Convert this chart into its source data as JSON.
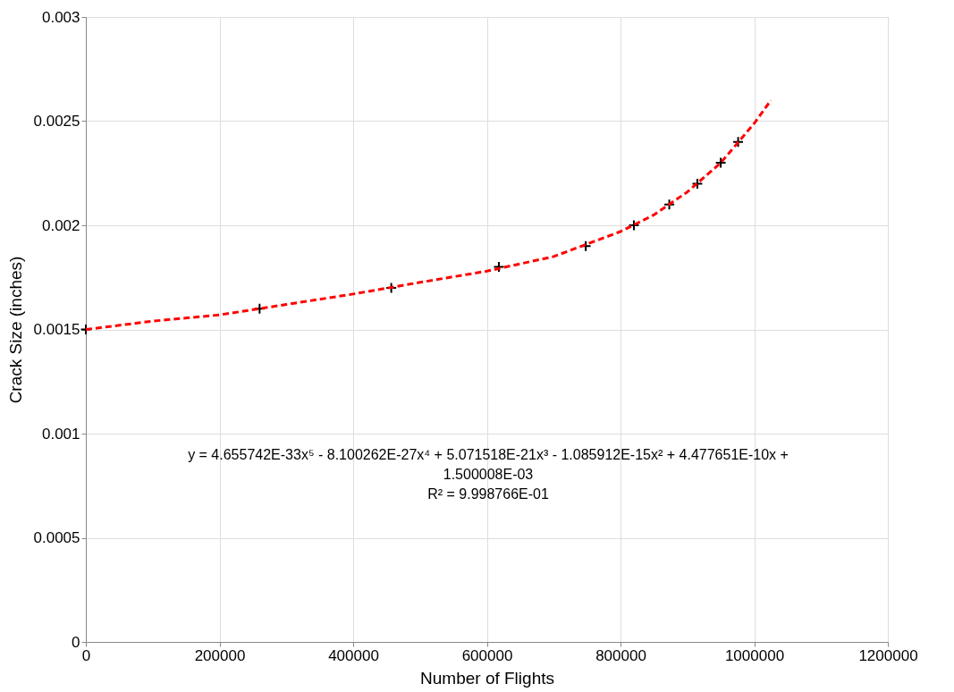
{
  "chart_data": {
    "type": "scatter",
    "xlabel": "Number of Flights",
    "ylabel": "Crack Size (inches)",
    "xlim": [
      0,
      1200000
    ],
    "xticks": [
      0,
      200000,
      400000,
      600000,
      800000,
      1000000,
      1200000
    ],
    "ylim": [
      0,
      0.003
    ],
    "yticks": [
      0,
      0.0005,
      0.001,
      0.0015,
      0.002,
      0.0025,
      0.003
    ],
    "grid": true,
    "series": [
      {
        "color": "#000000",
        "marker": "cross",
        "x": [
          0,
          260000,
          457000,
          618000,
          748000,
          820000,
          873000,
          915000,
          950000,
          976000
        ],
        "values": [
          0.0015,
          0.0016,
          0.0017,
          0.0018,
          0.0019,
          0.002,
          0.0021,
          0.0022,
          0.0023,
          0.0024
        ]
      },
      {
        "type": "line",
        "color": "#ff0000",
        "line_style": "dashed",
        "marker": "none",
        "x": [
          0,
          100000,
          200000,
          300000,
          400000,
          500000,
          600000,
          700000,
          800000,
          850000,
          900000,
          950000,
          1000000,
          1025000
        ],
        "values": [
          0.0015,
          0.00154,
          0.00157,
          0.00162,
          0.00167,
          0.001726,
          0.00178,
          0.00185,
          0.00197,
          0.00205,
          0.00216,
          0.0023,
          0.002489,
          0.0026
        ]
      }
    ],
    "annotations": [
      "y = 4.655742E-33x⁵ - 8.100262E-27x⁴ + 5.071518E-21x³ - 1.085912E-15x² + 4.477651E-10x + 1.500008E-03",
      "R² = 9.998766E-01"
    ]
  }
}
